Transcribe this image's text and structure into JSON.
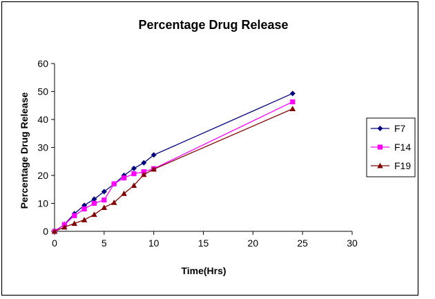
{
  "chart_data": {
    "type": "line",
    "title": "Percentage Drug Release",
    "xlabel": "Time(Hrs)",
    "ylabel": "Percentage Drug Release",
    "xlim": [
      0,
      30
    ],
    "ylim": [
      0,
      60
    ],
    "xticks": [
      0,
      5,
      10,
      15,
      20,
      25,
      30
    ],
    "yticks": [
      0,
      10,
      20,
      30,
      40,
      50,
      60
    ],
    "grid": false,
    "legend_position": "right",
    "series": [
      {
        "name": "F7",
        "color": "#000080",
        "marker": "diamond",
        "x": [
          0,
          1,
          2,
          3,
          4,
          5,
          6,
          7,
          8,
          9,
          10,
          24
        ],
        "y": [
          0,
          2.5,
          6.3,
          9.3,
          11.5,
          14.2,
          16.9,
          20.0,
          22.5,
          24.5,
          27.3,
          49.3
        ]
      },
      {
        "name": "F14",
        "color": "#FF00FF",
        "marker": "square",
        "x": [
          0,
          1,
          2,
          3,
          4,
          5,
          6,
          7,
          8,
          9,
          10,
          24
        ],
        "y": [
          0,
          2.4,
          5.6,
          8.0,
          10.0,
          11.2,
          17.0,
          19.1,
          20.6,
          21.3,
          22.4,
          46.3
        ]
      },
      {
        "name": "F19",
        "color": "#800000",
        "marker": "triangle",
        "x": [
          0,
          1,
          2,
          3,
          4,
          5,
          6,
          7,
          8,
          9,
          10,
          24
        ],
        "y": [
          0,
          1.5,
          2.8,
          4.1,
          6.0,
          8.5,
          10.3,
          13.5,
          16.4,
          20.3,
          22.2,
          43.8
        ]
      }
    ]
  }
}
